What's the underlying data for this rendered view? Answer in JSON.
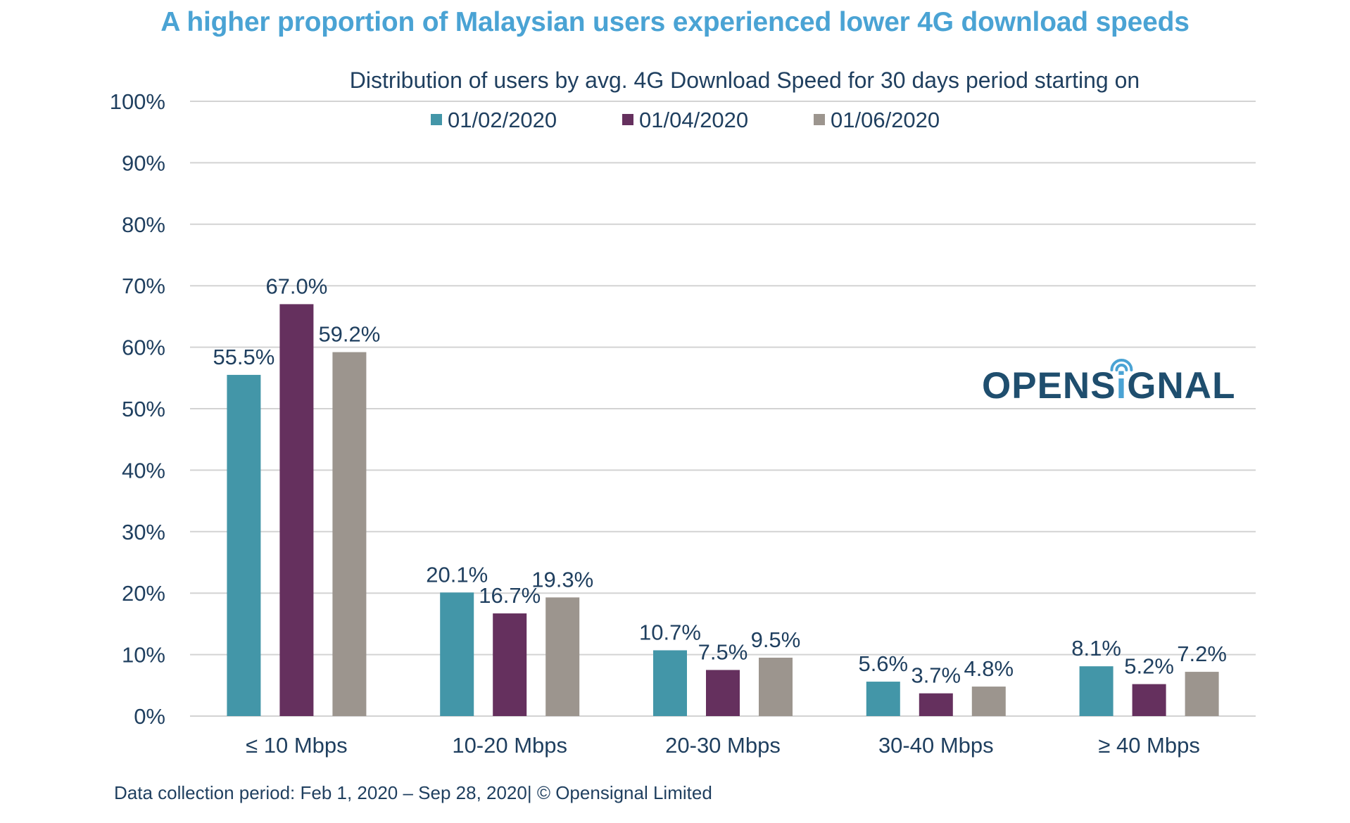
{
  "title": "A higher proportion of Malaysian users experienced lower 4G download speeds",
  "footer": "Data collection period: Feb 1, 2020 – Sep 28, 2020| © Opensignal Limited",
  "logo": {
    "text": "OPENSIGNAL",
    "pre": "OPENS",
    "i": "i",
    "post": "GNAL"
  },
  "colors": {
    "title": "#4aa3d4",
    "text": "#1f3f5f",
    "grid": "#d3d3d3",
    "logo": "#1f4e6e",
    "logo_accent": "#4aa3d4"
  },
  "chart_data": {
    "type": "bar",
    "title": "Distribution of users by avg. 4G Download Speed for 30 days period starting on",
    "categories": [
      "≤ 10 Mbps",
      "10-20 Mbps",
      "20-30 Mbps",
      "30-40 Mbps",
      "≥ 40 Mbps"
    ],
    "series": [
      {
        "name": "01/02/2020",
        "color": "#4396a8",
        "values": [
          55.5,
          20.1,
          10.7,
          5.6,
          8.1
        ],
        "labels": [
          "55.5%",
          "20.1%",
          "10.7%",
          "5.6%",
          "8.1%"
        ]
      },
      {
        "name": "01/04/2020",
        "color": "#65305e",
        "values": [
          67.0,
          16.7,
          7.5,
          3.7,
          5.2
        ],
        "labels": [
          "67.0%",
          "16.7%",
          "7.5%",
          "3.7%",
          "5.2%"
        ]
      },
      {
        "name": "01/06/2020",
        "color": "#9c958e",
        "values": [
          59.2,
          19.3,
          9.5,
          4.8,
          7.2
        ],
        "labels": [
          "59.2%",
          "19.3%",
          "9.5%",
          "4.8%",
          "7.2%"
        ]
      }
    ],
    "ylim": [
      0,
      100
    ],
    "yticks": [
      0,
      10,
      20,
      30,
      40,
      50,
      60,
      70,
      80,
      90,
      100
    ],
    "ytick_labels": [
      "0%",
      "10%",
      "20%",
      "30%",
      "40%",
      "50%",
      "60%",
      "70%",
      "80%",
      "90%",
      "100%"
    ],
    "xlabel": "",
    "ylabel": "",
    "grid": true,
    "legend": "top-center"
  }
}
